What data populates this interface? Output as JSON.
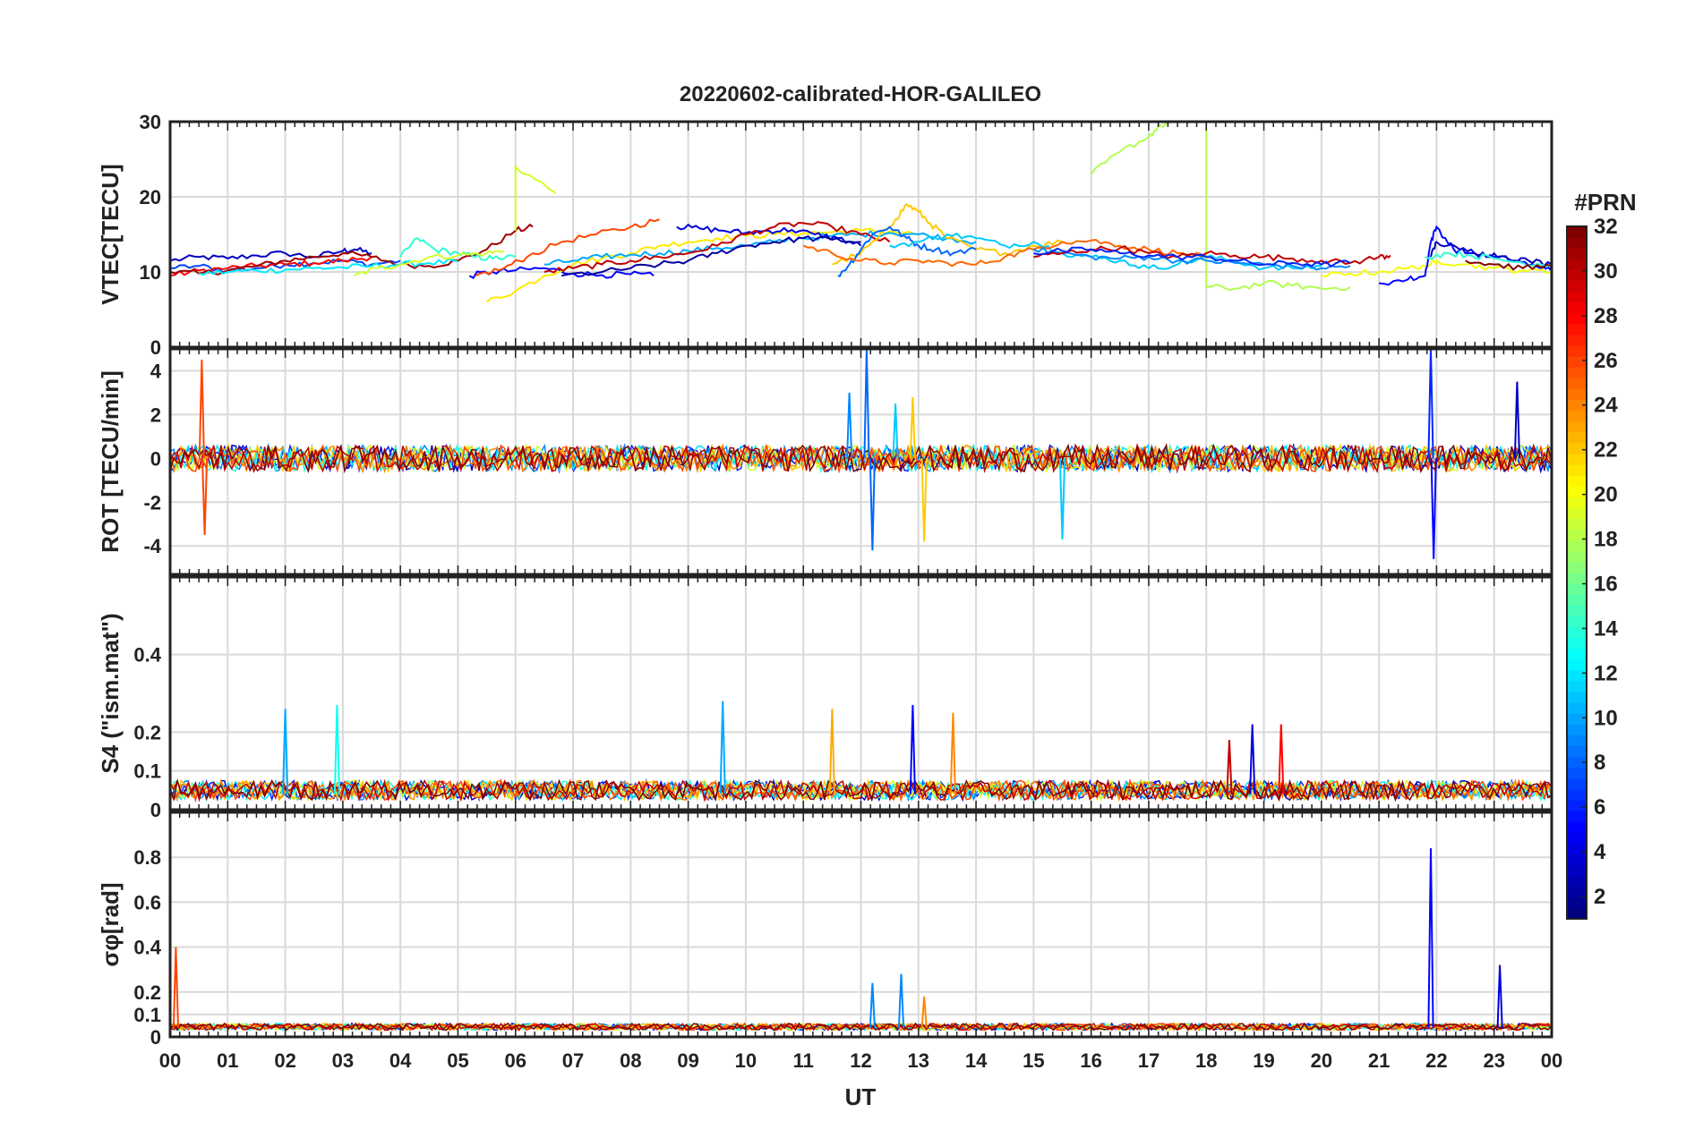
{
  "chart_data": {
    "title": "20220602-calibrated-HOR-GALILEO",
    "xlabel": "UT",
    "x_ticks": [
      "00",
      "01",
      "02",
      "03",
      "04",
      "05",
      "06",
      "07",
      "08",
      "09",
      "10",
      "11",
      "12",
      "13",
      "14",
      "15",
      "16",
      "17",
      "18",
      "19",
      "20",
      "21",
      "22",
      "23",
      "00"
    ],
    "xlim_hours": [
      0,
      24
    ],
    "grid": true,
    "colorbar": {
      "title": "#PRN",
      "range": [
        1,
        32
      ],
      "ticks": [
        2,
        4,
        6,
        8,
        10,
        12,
        14,
        16,
        18,
        20,
        22,
        24,
        26,
        28,
        30,
        32
      ],
      "colormap": "jet",
      "placement": "right"
    },
    "panels": [
      {
        "id": "vtec",
        "type": "line",
        "ylabel": "VTEC[TECU]",
        "ylim": [
          0,
          30
        ],
        "yticks": [
          0,
          10,
          20,
          30
        ],
        "series": [
          {
            "prn": 3,
            "x": [
              0,
              0.5,
              1,
              1.5,
              2,
              2.5,
              3,
              3.2,
              3.5
            ],
            "y": [
              11.5,
              12,
              11.8,
              12.2,
              12.5,
              12,
              12.8,
              13,
              12.5
            ]
          },
          {
            "prn": 7,
            "x": [
              0,
              0.5,
              1,
              1.5,
              2,
              2.5,
              3,
              3.5,
              4
            ],
            "y": [
              10.5,
              10.8,
              10.2,
              10.5,
              11,
              11.2,
              11.5,
              11,
              11.5
            ]
          },
          {
            "prn": 28,
            "x": [
              0,
              0.5,
              1,
              1.5,
              2,
              2.5,
              3,
              3.5
            ],
            "y": [
              9.5,
              10.2,
              10.5,
              10.8,
              11,
              11.2,
              11.5,
              12
            ]
          },
          {
            "prn": 31,
            "x": [
              0,
              0.5,
              1,
              1.5,
              2,
              2.5,
              3,
              3.5,
              4,
              4.5,
              5,
              5.5,
              6,
              6.3
            ],
            "y": [
              10,
              9.8,
              10.2,
              10.8,
              11.5,
              12,
              12.5,
              12,
              11,
              10.8,
              11.5,
              13,
              15.5,
              16
            ]
          },
          {
            "prn": 12,
            "x": [
              0.5,
              1,
              1.5,
              2,
              2.5,
              3,
              3.5,
              4,
              4.5,
              5
            ],
            "y": [
              9.8,
              10,
              10.2,
              10.3,
              10.5,
              10.6,
              10.8,
              11,
              11.2,
              11.4
            ]
          },
          {
            "prn": 14,
            "x": [
              4,
              4.3,
              4.6,
              5,
              5.3,
              5.6,
              6
            ],
            "y": [
              12,
              14.5,
              13,
              12.5,
              12,
              11.8,
              12
            ]
          },
          {
            "prn": 19,
            "x": [
              3.2,
              3.6,
              4,
              4.5,
              5,
              5.5,
              5.8
            ],
            "y": [
              9.5,
              10.5,
              11,
              12,
              12.2,
              12.5,
              12.8
            ]
          },
          {
            "prn": 19,
            "x": [
              6,
              6,
              6.7
            ],
            "y": [
              15.5,
              24,
              20.5
            ]
          },
          {
            "prn": 5,
            "x": [
              5.2,
              5.6,
              6,
              6.5,
              7,
              7.5,
              8,
              8.4
            ],
            "y": [
              9.5,
              10,
              10.2,
              10.5,
              9.8,
              9.6,
              9.7,
              9.5
            ]
          },
          {
            "prn": 26,
            "x": [
              5.3,
              5.8,
              6.2,
              6.8,
              7.4,
              8,
              8.5
            ],
            "y": [
              9.5,
              10.5,
              12,
              14,
              15,
              16,
              17
            ]
          },
          {
            "prn": 21,
            "x": [
              5.5,
              6,
              6.5,
              7,
              7.5,
              8,
              8.5,
              9,
              9.5,
              10,
              10.5,
              11,
              11.5,
              12,
              12.5,
              13
            ],
            "y": [
              6,
              7.5,
              9.5,
              11,
              11.8,
              12.5,
              13.5,
              14,
              14.5,
              14.8,
              15,
              15.2,
              15.3,
              15.5,
              15.4,
              15
            ]
          },
          {
            "prn": 10,
            "x": [
              6.5,
              7,
              7.5,
              8,
              8.5,
              9,
              9.5,
              10,
              10.5,
              11,
              11.5,
              12,
              12.5,
              13,
              13.5,
              14
            ],
            "y": [
              11,
              11.5,
              12,
              12.3,
              12.5,
              12.8,
              13.2,
              13.5,
              14,
              14.5,
              14.8,
              15,
              15.2,
              15,
              14.5,
              14
            ]
          },
          {
            "prn": 4,
            "x": [
              8.8,
              9.2,
              9.6,
              10,
              10.4,
              10.8,
              11.2,
              11.6,
              12
            ],
            "y": [
              16,
              15.8,
              15.5,
              15.2,
              15.5,
              15.6,
              15,
              14.5,
              13.5
            ]
          },
          {
            "prn": 30,
            "x": [
              6.5,
              7,
              7.5,
              8,
              8.5,
              9,
              9.5,
              10,
              10.5,
              11,
              11.5,
              12,
              12.5
            ],
            "y": [
              10,
              10.5,
              11,
              11.5,
              12,
              12.5,
              13.5,
              15,
              16,
              16.5,
              16,
              15,
              14
            ]
          },
          {
            "prn": 2,
            "x": [
              6.8,
              7.5,
              8,
              8.5,
              9,
              9.5,
              10,
              10.5,
              11,
              11.5,
              12
            ],
            "y": [
              9.5,
              10,
              10.5,
              11,
              11.5,
              12.5,
              13.5,
              14,
              14.5,
              14.3,
              14
            ]
          },
          {
            "prn": 22,
            "x": [
              11.5,
              12,
              12.3,
              12.6,
              12.8,
              13,
              13.2,
              13.5,
              14,
              14.5,
              15,
              15.5
            ],
            "y": [
              11,
              12.5,
              14.5,
              17,
              19,
              18,
              16.5,
              14.5,
              13,
              12.5,
              13.5,
              14
            ]
          },
          {
            "prn": 8,
            "x": [
              11.6,
              11.8,
              12,
              12.2,
              12.5,
              12.8,
              13,
              13.3,
              13.6,
              14
            ],
            "y": [
              9.5,
              11,
              13,
              15,
              16,
              14.5,
              13.5,
              13,
              12.5,
              13
            ]
          },
          {
            "prn": 11,
            "x": [
              12.5,
              13,
              13.5,
              14,
              14.5,
              15,
              15.5,
              16,
              16.5,
              17,
              17.5,
              18,
              18.5,
              19,
              19.5,
              20
            ],
            "y": [
              13.5,
              14,
              15,
              14.5,
              13.5,
              14,
              12.5,
              12,
              11.5,
              10.5,
              11,
              12,
              11.5,
              10.5,
              10.5,
              10.8
            ]
          },
          {
            "prn": 25,
            "x": [
              11,
              11.5,
              12,
              12.5,
              13,
              13.5,
              14,
              14.5,
              15,
              15.5,
              16,
              16.5,
              17,
              17.5,
              18
            ],
            "y": [
              13.5,
              12.5,
              11.5,
              11.2,
              11.5,
              11.2,
              11,
              12,
              13,
              14,
              14.2,
              13.5,
              13,
              12.5,
              12
            ]
          },
          {
            "prn": 18,
            "x": [
              16,
              16.5,
              17,
              17.2,
              17.5,
              18,
              18,
              18.5,
              19,
              19.5,
              20,
              20.5
            ],
            "y": [
              23,
              26,
              28,
              29.5,
              30,
              30,
              8,
              7.8,
              8.5,
              8.2,
              7.8,
              8
            ]
          },
          {
            "prn": 9,
            "x": [
              15,
              15.5,
              16,
              16.5,
              17,
              17.5,
              18,
              18.5,
              19,
              19.5,
              20,
              20.5
            ],
            "y": [
              13,
              12.5,
              12,
              11.8,
              12,
              11.5,
              11.5,
              11.2,
              11,
              10.8,
              10.5,
              10.8
            ]
          },
          {
            "prn": 30,
            "x": [
              15,
              15.5,
              16,
              16.5,
              17,
              17.5,
              18,
              18.5,
              19,
              19.5,
              20,
              20.5,
              21,
              21.2
            ],
            "y": [
              12,
              12.5,
              13,
              13.2,
              12.5,
              12,
              12.5,
              12.2,
              12,
              11.8,
              11.5,
              11.2,
              12,
              12.2
            ]
          },
          {
            "prn": 6,
            "x": [
              15,
              15.5,
              16,
              16.5,
              17,
              17.5,
              18,
              18.5,
              19,
              19.5,
              20,
              20.5
            ],
            "y": [
              12.5,
              12.8,
              13,
              12.5,
              12.2,
              12,
              12,
              11.5,
              11,
              11.2,
              11,
              11.2
            ]
          },
          {
            "prn": 20,
            "x": [
              20,
              20.5,
              21,
              21.5,
              21.9,
              22,
              22.5,
              23,
              23.5,
              24
            ],
            "y": [
              9.5,
              9.8,
              10,
              10.5,
              11,
              11.5,
              11,
              10.5,
              10.2,
              10
            ]
          },
          {
            "prn": 5,
            "x": [
              21,
              21.5,
              21.8,
              21.9,
              22,
              22.3,
              22.6,
              23,
              23.4,
              23.8,
              24
            ],
            "y": [
              8.5,
              9,
              9.5,
              14,
              16,
              13,
              12.5,
              12,
              11.5,
              10.5,
              10.8
            ]
          },
          {
            "prn": 3,
            "x": [
              21.9,
              22,
              22.4,
              22.8,
              23.2,
              23.6,
              24
            ],
            "y": [
              12,
              14,
              13,
              12.5,
              12,
              11.5,
              11
            ]
          },
          {
            "prn": 14,
            "x": [
              21.8,
              22.2,
              22.6,
              23,
              23.5,
              24
            ],
            "y": [
              12,
              12.5,
              12.2,
              11.8,
              11.2,
              11
            ]
          },
          {
            "prn": 32,
            "x": [
              22.5,
              23,
              23.5,
              24
            ],
            "y": [
              11.5,
              11,
              10.5,
              10.8
            ]
          }
        ]
      },
      {
        "id": "rot",
        "type": "line",
        "ylabel": "ROT [TECU/min]",
        "ylim": [
          -5.3,
          5
        ],
        "yticks": [
          -4,
          -2,
          0,
          2,
          4
        ],
        "note": "dense noise around 0 for all PRNs",
        "spikes": [
          {
            "prn": 26,
            "x": 0.55,
            "y": 4.5
          },
          {
            "prn": 26,
            "x": 0.6,
            "y": -3.5
          },
          {
            "prn": 8,
            "x": 12.1,
            "y": 5
          },
          {
            "prn": 8,
            "x": 12.2,
            "y": -4.2
          },
          {
            "prn": 9,
            "x": 11.8,
            "y": 3
          },
          {
            "prn": 11,
            "x": 12.6,
            "y": 2.5
          },
          {
            "prn": 22,
            "x": 12.9,
            "y": 2.8
          },
          {
            "prn": 22,
            "x": 13.1,
            "y": -3.8
          },
          {
            "prn": 11,
            "x": 15.5,
            "y": -3.7
          },
          {
            "prn": 6,
            "x": 21.9,
            "y": 5
          },
          {
            "prn": 5,
            "x": 21.95,
            "y": -4.6
          },
          {
            "prn": 3,
            "x": 23.4,
            "y": 3.5
          }
        ]
      },
      {
        "id": "s4",
        "type": "line",
        "ylabel": "S4 (\"ism.mat\")",
        "ylim": [
          0,
          0.6
        ],
        "yticks": [
          0,
          0.1,
          0.2,
          0.4
        ],
        "note": "noisy baseline 0.02-0.08 for all PRNs",
        "spikes": [
          {
            "prn": 10,
            "x": 2,
            "y": 0.26
          },
          {
            "prn": 13,
            "x": 2.9,
            "y": 0.27
          },
          {
            "prn": 10,
            "x": 9.6,
            "y": 0.28
          },
          {
            "prn": 23,
            "x": 11.5,
            "y": 0.26
          },
          {
            "prn": 5,
            "x": 12.9,
            "y": 0.27
          },
          {
            "prn": 24,
            "x": 13.6,
            "y": 0.25
          },
          {
            "prn": 4,
            "x": 18.8,
            "y": 0.22
          },
          {
            "prn": 28,
            "x": 19.3,
            "y": 0.22
          },
          {
            "prn": 30,
            "x": 18.4,
            "y": 0.18
          }
        ]
      },
      {
        "id": "sigma_phi",
        "type": "line",
        "ylabel": "σφ[rad]",
        "ylim": [
          0,
          1
        ],
        "yticks": [
          0,
          0.1,
          0.2,
          0.4,
          0.6,
          0.8
        ],
        "note": "baseline ~0.03-0.07 for all PRNs",
        "spikes": [
          {
            "prn": 26,
            "x": 0.1,
            "y": 0.4
          },
          {
            "prn": 9,
            "x": 12.2,
            "y": 0.24
          },
          {
            "prn": 9,
            "x": 12.7,
            "y": 0.28
          },
          {
            "prn": 24,
            "x": 13.1,
            "y": 0.18
          },
          {
            "prn": 5,
            "x": 21.9,
            "y": 0.84
          },
          {
            "prn": 4,
            "x": 23.1,
            "y": 0.32
          }
        ]
      }
    ]
  }
}
